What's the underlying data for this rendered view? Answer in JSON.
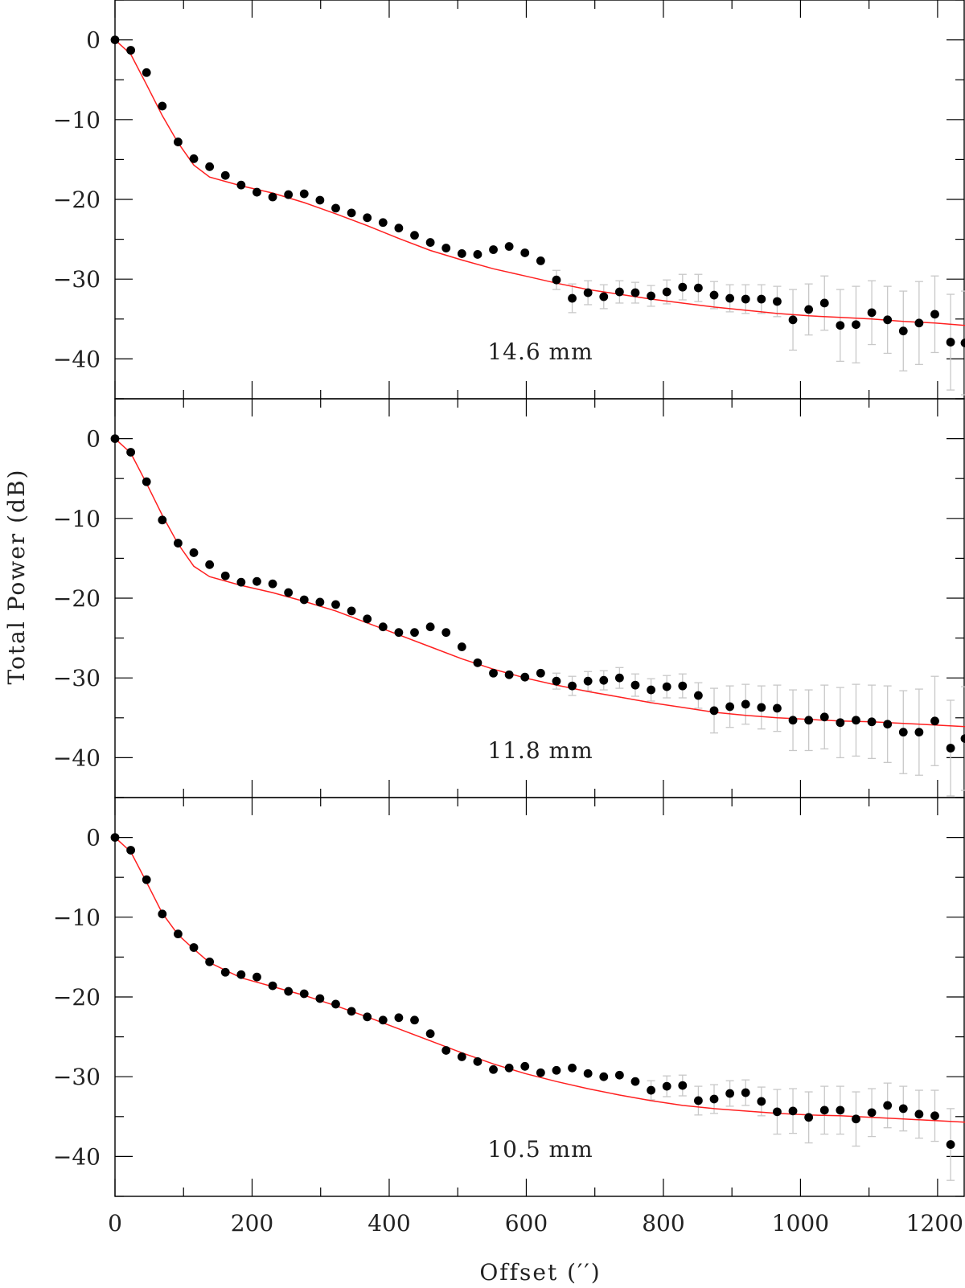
{
  "ylabel": "Total Power (dB)",
  "xlabel": "Offset (′′)",
  "colors": {
    "fit": "#ff2020",
    "points": "#000000",
    "errorbars": "#c8c8c8",
    "axes": "#000000"
  },
  "xlim": [
    0,
    1240
  ],
  "ylim": [
    -45,
    5
  ],
  "xticks": [
    0,
    200,
    400,
    600,
    800,
    1000,
    1200
  ],
  "xtick_labels": [
    "0",
    "200",
    "400",
    "600",
    "800",
    "1000",
    "1200"
  ],
  "yticks": [
    0,
    -10,
    -20,
    -30,
    -40
  ],
  "ytick_labels": [
    "0",
    "−10",
    "−20",
    "−30",
    "−40"
  ],
  "chart_data": [
    {
      "type": "scatter",
      "label": "14.6 mm",
      "xlim": [
        0,
        1240
      ],
      "ylim": [
        -45,
        5
      ],
      "x": [
        0,
        23,
        46,
        69,
        92,
        115,
        138,
        161,
        184,
        207,
        230,
        253,
        276,
        299,
        322,
        345,
        368,
        391,
        414,
        437,
        460,
        483,
        506,
        529,
        552,
        575,
        598,
        621,
        644,
        667,
        690,
        713,
        736,
        759,
        782,
        805,
        828,
        851,
        874,
        897,
        920,
        943,
        966,
        989,
        1012,
        1035,
        1058,
        1081,
        1104,
        1127,
        1150,
        1173,
        1196,
        1219,
        1240
      ],
      "y": [
        0,
        -1.3,
        -4.1,
        -8.3,
        -12.8,
        -14.9,
        -15.9,
        -17.0,
        -18.2,
        -19.1,
        -19.7,
        -19.4,
        -19.3,
        -20.1,
        -21.1,
        -21.7,
        -22.3,
        -22.9,
        -23.6,
        -24.5,
        -25.4,
        -26.1,
        -26.8,
        -26.9,
        -26.3,
        -25.9,
        -26.7,
        -27.7,
        -30.1,
        -32.4,
        -31.7,
        -32.2,
        -31.6,
        -31.7,
        -32.1,
        -31.6,
        -31.0,
        -31.1,
        -32.0,
        -32.4,
        -32.5,
        -32.5,
        -32.8,
        -35.1,
        -33.8,
        -33.0,
        -35.8,
        -35.7,
        -34.2,
        -35.1,
        -36.5,
        -35.5,
        -34.4,
        -37.9,
        -38.0
      ],
      "yerr": [
        0,
        0,
        0,
        0,
        0,
        0,
        0,
        0,
        0,
        0,
        0,
        0,
        0,
        0,
        0,
        0,
        0,
        0,
        0,
        0,
        0,
        0,
        0,
        0,
        0,
        0,
        0,
        0,
        1.2,
        1.8,
        1.5,
        1.5,
        1.4,
        1.3,
        1.3,
        1.5,
        1.6,
        1.7,
        1.7,
        1.7,
        1.8,
        1.8,
        1.9,
        3.8,
        3.2,
        3.4,
        4.5,
        4.8,
        4.0,
        4.2,
        5.0,
        5.2,
        4.8,
        6.0,
        6.5
      ],
      "fit_x": [
        0,
        23,
        46,
        69,
        92,
        115,
        138,
        184,
        230,
        276,
        322,
        368,
        414,
        460,
        506,
        552,
        598,
        644,
        690,
        736,
        782,
        828,
        874,
        920,
        966,
        1012,
        1058,
        1104,
        1150,
        1196,
        1240
      ],
      "fit_y": [
        0,
        -1.8,
        -5.6,
        -9.5,
        -12.9,
        -15.7,
        -17.2,
        -18.3,
        -19.2,
        -20.4,
        -21.8,
        -23.3,
        -24.9,
        -26.4,
        -27.6,
        -28.7,
        -29.6,
        -30.5,
        -31.3,
        -31.9,
        -32.5,
        -33.0,
        -33.5,
        -33.9,
        -34.3,
        -34.6,
        -34.8,
        -35.0,
        -35.3,
        -35.5,
        -35.8
      ]
    },
    {
      "type": "scatter",
      "label": "11.8 mm",
      "xlim": [
        0,
        1240
      ],
      "ylim": [
        -45,
        5
      ],
      "x": [
        0,
        23,
        46,
        69,
        92,
        115,
        138,
        161,
        184,
        207,
        230,
        253,
        276,
        299,
        322,
        345,
        368,
        391,
        414,
        437,
        460,
        483,
        506,
        529,
        552,
        575,
        598,
        621,
        644,
        667,
        690,
        713,
        736,
        759,
        782,
        805,
        828,
        851,
        874,
        897,
        920,
        943,
        966,
        989,
        1012,
        1035,
        1058,
        1081,
        1104,
        1127,
        1150,
        1173,
        1196,
        1219,
        1240
      ],
      "y": [
        0,
        -1.7,
        -5.4,
        -10.2,
        -13.1,
        -14.3,
        -15.8,
        -17.2,
        -18.0,
        -17.9,
        -18.2,
        -19.3,
        -20.2,
        -20.5,
        -20.8,
        -21.6,
        -22.6,
        -23.6,
        -24.3,
        -24.3,
        -23.6,
        -24.3,
        -26.1,
        -28.1,
        -29.4,
        -29.6,
        -29.9,
        -29.4,
        -30.4,
        -31.0,
        -30.4,
        -30.3,
        -30.0,
        -30.9,
        -31.5,
        -31.1,
        -31.0,
        -32.2,
        -34.1,
        -33.6,
        -33.3,
        -33.7,
        -33.8,
        -35.3,
        -35.3,
        -34.9,
        -35.6,
        -35.3,
        -35.5,
        -35.8,
        -36.8,
        -36.8,
        -35.4,
        -38.8,
        -37.6
      ],
      "yerr": [
        0,
        0,
        0,
        0,
        0,
        0,
        0,
        0,
        0,
        0,
        0,
        0,
        0,
        0,
        0,
        0,
        0,
        0,
        0,
        0,
        0,
        0,
        0,
        0,
        0,
        0,
        0,
        0,
        1.0,
        1.2,
        1.2,
        1.2,
        1.3,
        1.4,
        1.4,
        1.4,
        1.5,
        1.6,
        2.8,
        2.6,
        2.5,
        2.7,
        2.9,
        3.8,
        3.8,
        4.0,
        4.4,
        4.5,
        4.6,
        4.8,
        5.2,
        5.4,
        5.6,
        6.0,
        6.5
      ],
      "fit_x": [
        0,
        23,
        46,
        69,
        92,
        115,
        138,
        184,
        230,
        276,
        322,
        368,
        414,
        460,
        506,
        552,
        598,
        644,
        690,
        736,
        782,
        828,
        874,
        920,
        966,
        1012,
        1058,
        1104,
        1150,
        1196,
        1240
      ],
      "fit_y": [
        0,
        -1.8,
        -5.6,
        -9.6,
        -13.2,
        -16.0,
        -17.3,
        -18.4,
        -19.3,
        -20.4,
        -21.6,
        -23.1,
        -24.6,
        -26.1,
        -27.6,
        -28.9,
        -30.0,
        -30.9,
        -31.7,
        -32.4,
        -33.1,
        -33.7,
        -34.3,
        -34.7,
        -35.0,
        -35.2,
        -35.4,
        -35.5,
        -35.7,
        -35.9,
        -36.1
      ]
    },
    {
      "type": "scatter",
      "label": "10.5 mm",
      "xlim": [
        0,
        1240
      ],
      "ylim": [
        -45,
        5
      ],
      "x": [
        0,
        23,
        46,
        69,
        92,
        115,
        138,
        161,
        184,
        207,
        230,
        253,
        276,
        299,
        322,
        345,
        368,
        391,
        414,
        437,
        460,
        483,
        506,
        529,
        552,
        575,
        598,
        621,
        644,
        667,
        690,
        713,
        736,
        759,
        782,
        805,
        828,
        851,
        874,
        897,
        920,
        943,
        966,
        989,
        1012,
        1035,
        1058,
        1081,
        1104,
        1127,
        1150,
        1173,
        1196,
        1219
      ],
      "y": [
        0,
        -1.6,
        -5.3,
        -9.6,
        -12.1,
        -13.8,
        -15.6,
        -16.9,
        -17.2,
        -17.5,
        -18.6,
        -19.3,
        -19.6,
        -20.2,
        -20.9,
        -21.8,
        -22.5,
        -22.9,
        -22.6,
        -22.9,
        -24.6,
        -26.7,
        -27.5,
        -28.1,
        -29.1,
        -28.9,
        -28.7,
        -29.5,
        -29.2,
        -28.9,
        -29.6,
        -30.0,
        -29.8,
        -30.6,
        -31.7,
        -31.2,
        -31.1,
        -33.0,
        -32.8,
        -32.1,
        -32.0,
        -33.1,
        -34.4,
        -34.3,
        -35.1,
        -34.2,
        -34.2,
        -35.3,
        -34.5,
        -33.6,
        -34.0,
        -34.7,
        -34.9,
        -38.5
      ],
      "yerr": [
        0,
        0,
        0,
        0,
        0,
        0,
        0,
        0,
        0,
        0,
        0,
        0,
        0,
        0,
        0,
        0,
        0,
        0,
        0,
        0,
        0,
        0,
        0,
        0,
        0,
        0,
        0,
        0,
        0,
        0,
        0,
        0,
        0,
        0,
        1.2,
        1.3,
        1.3,
        1.8,
        1.8,
        1.6,
        1.6,
        1.8,
        2.8,
        2.8,
        3.2,
        3.0,
        3.0,
        3.4,
        3.0,
        2.8,
        2.8,
        3.0,
        3.2,
        4.5
      ],
      "fit_x": [
        0,
        23,
        46,
        69,
        92,
        115,
        138,
        184,
        230,
        276,
        322,
        368,
        414,
        460,
        506,
        552,
        598,
        644,
        690,
        736,
        782,
        828,
        874,
        920,
        966,
        1012,
        1058,
        1104,
        1150,
        1196,
        1240
      ],
      "fit_y": [
        0,
        -1.8,
        -5.6,
        -9.5,
        -12.2,
        -14.0,
        -15.7,
        -17.6,
        -18.7,
        -19.8,
        -21.1,
        -22.5,
        -24.0,
        -25.5,
        -27.0,
        -28.4,
        -29.6,
        -30.6,
        -31.5,
        -32.3,
        -33.0,
        -33.6,
        -34.0,
        -34.3,
        -34.6,
        -34.8,
        -34.9,
        -35.1,
        -35.3,
        -35.5,
        -35.7
      ]
    }
  ]
}
